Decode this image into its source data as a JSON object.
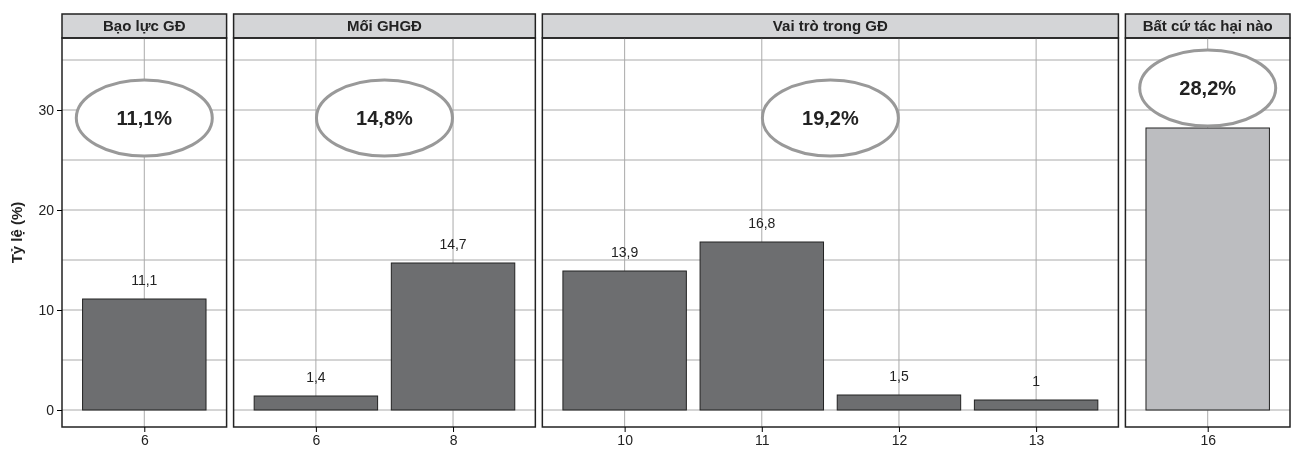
{
  "chart_data": [
    {
      "type": "bar",
      "title": "Bạo lực GĐ",
      "ylabel": "Tỷ lệ (%)",
      "categories": [
        "6"
      ],
      "values": [
        11.1
      ],
      "value_labels": [
        "11,1"
      ],
      "color": "#6d6e70",
      "ylim": [
        -1.7,
        37.2
      ],
      "yticks": [
        0,
        {
          "value": 5,
          "label": null
        },
        10,
        {
          "value": 15,
          "label": null
        },
        20,
        {
          "value": 25,
          "label": null
        },
        30,
        {
          "value": 35,
          "label": null
        }
      ],
      "grid": true,
      "annotations": [
        "11,1%"
      ]
    },
    {
      "type": "bar",
      "title": "Mối GHGĐ",
      "categories": [
        "6",
        "8"
      ],
      "values": [
        1.4,
        14.7
      ],
      "value_labels": [
        "1,4",
        "14,7"
      ],
      "color": "#6d6e70",
      "ylim": [
        -1.7,
        37.2
      ],
      "yticks": [
        0,
        {
          "value": 5,
          "label": null
        },
        10,
        {
          "value": 15,
          "label": null
        },
        20,
        {
          "value": 25,
          "label": null
        },
        30,
        {
          "value": 35,
          "label": null
        }
      ],
      "grid": true,
      "tick_labels": "x",
      "annotations": [
        "14,8%"
      ]
    },
    {
      "type": "bar",
      "title": "Vai trò trong GĐ",
      "categories": [
        "10",
        "11",
        "12",
        "13"
      ],
      "values": [
        13.9,
        16.8,
        1.5,
        1
      ],
      "value_labels": [
        "13,9",
        "16,8",
        "1,5",
        "1"
      ],
      "color": "#6d6e70",
      "ylim": [
        -1.7,
        37.2
      ],
      "yticks": [
        0,
        {
          "value": 5,
          "label": null
        },
        10,
        {
          "value": 15,
          "label": null
        },
        20,
        {
          "value": 25,
          "label": null
        },
        30,
        {
          "value": 35,
          "label": null
        }
      ],
      "grid": true,
      "tick_labels": "x",
      "annotations": [
        "19,2%"
      ]
    },
    {
      "type": "bar",
      "title": "Bất cứ tác hại nào",
      "categories": [
        "16"
      ],
      "values": [
        28.2
      ],
      "color": "#bcbdc0",
      "ylim": [
        -1.7,
        37.2
      ],
      "yticks": [
        0,
        {
          "value": 5,
          "label": null
        },
        10,
        {
          "value": 15,
          "label": null
        },
        20,
        {
          "value": 25,
          "label": null
        },
        30,
        {
          "value": 35,
          "label": null
        }
      ],
      "grid": true,
      "tick_labels": "x",
      "annotations": [
        "28,2%"
      ]
    }
  ]
}
